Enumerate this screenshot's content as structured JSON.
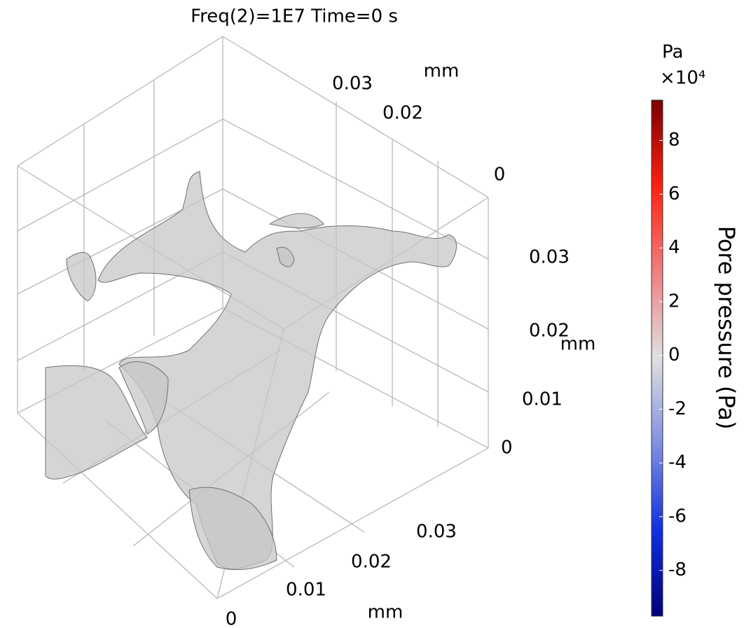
{
  "chart_data": {
    "type": "volume3d",
    "title": "Freq(2)=1E7 Time=0 s",
    "x_axis": {
      "unit": "mm",
      "ticks": [
        0,
        0.01,
        0.02,
        0.03
      ]
    },
    "y_axis": {
      "unit": "mm",
      "ticks": [
        0,
        0.02,
        0.03
      ]
    },
    "z_axis": {
      "unit": "mm",
      "ticks": [
        0,
        0.01,
        0.02,
        0.03
      ]
    },
    "colorbar": {
      "unit": "Pa",
      "multiplier": "×10⁴",
      "label": "Pore pressure (Pa)",
      "lim": [
        -9.7,
        9.5
      ],
      "ticks": [
        8,
        6,
        4,
        2,
        0,
        -2,
        -4,
        -6,
        -8
      ],
      "colormap": [
        "#00007a",
        "#1030e0",
        "#8090e0",
        "#e0e0e0",
        "#f08080",
        "#ff2010",
        "#7a0000"
      ]
    }
  }
}
